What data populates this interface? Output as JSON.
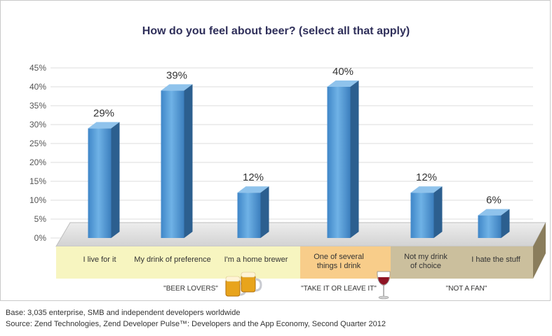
{
  "chart_data": {
    "type": "bar",
    "title": "How do you feel about beer? (select all that apply)",
    "categories": [
      "I live for it",
      "My drink of preference",
      "I'm a home brewer",
      "One of several things I drink",
      "Not my drink of choice",
      "I hate the stuff"
    ],
    "category_lines": [
      [
        "I live for it"
      ],
      [
        "My drink of preference"
      ],
      [
        "I'm a home brewer"
      ],
      [
        "One of several",
        "things I drink"
      ],
      [
        "Not my drink",
        "of choice"
      ],
      [
        "I hate the stuff"
      ]
    ],
    "values": [
      29,
      39,
      12,
      40,
      12,
      6
    ],
    "data_labels": [
      "29%",
      "39%",
      "12%",
      "40%",
      "12%",
      "6%"
    ],
    "y_ticks": [
      "0%",
      "5%",
      "10%",
      "15%",
      "20%",
      "25%",
      "30%",
      "35%",
      "40%",
      "45%"
    ],
    "ylim": [
      0,
      45
    ],
    "grid": true,
    "groups": [
      {
        "label": "\"BEER LOVERS\"",
        "categories": [
          0,
          1,
          2
        ],
        "color": "#f7f5c0",
        "icon": "beer-mugs-icon"
      },
      {
        "label": "\"TAKE IT OR LEAVE IT\"",
        "categories": [
          3
        ],
        "color": "#f8cd8a",
        "icon": "wine-glass-icon"
      },
      {
        "label": "\"NOT A FAN\"",
        "categories": [
          4,
          5
        ],
        "color": "#cbbf9d",
        "icon": ""
      }
    ],
    "bar_color": "#4a90cf"
  },
  "footer": {
    "base": "Base: 3,035 enterprise, SMB and independent developers worldwide",
    "source": "Source: Zend Technologies, Zend Developer Pulse™: Developers and the App Economy, Second Quarter 2012"
  }
}
